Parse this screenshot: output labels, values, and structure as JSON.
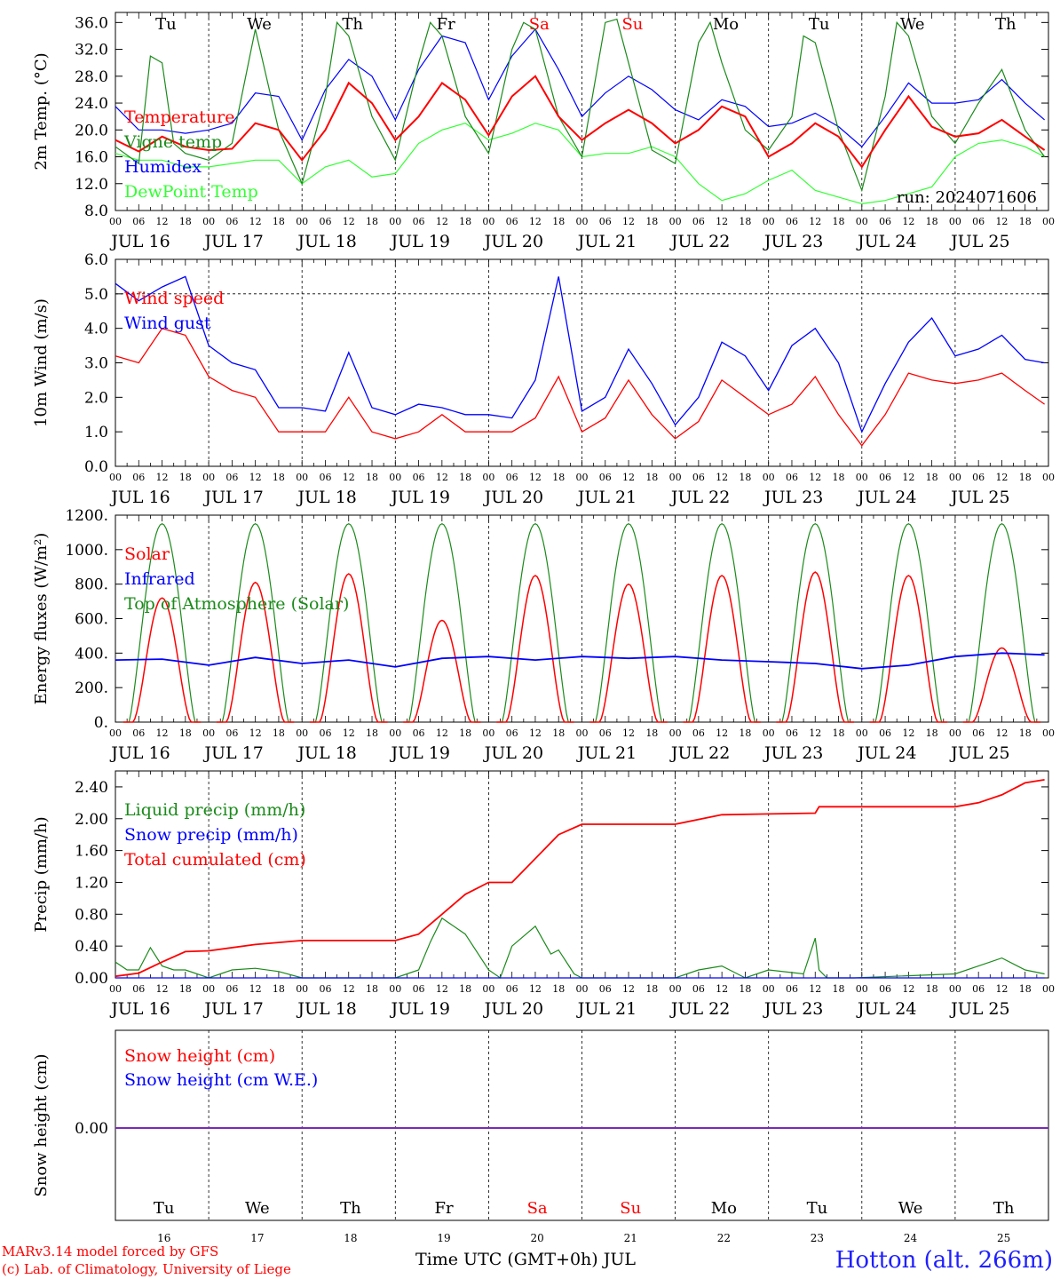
{
  "chart_data": [
    {
      "type": "line",
      "ylabel": "2m Temp. (°C)",
      "ylim": [
        8.0,
        37.5
      ],
      "yticks": [
        "8.0",
        "12.0",
        "16.0",
        "20.0",
        "24.0",
        "28.0",
        "32.0",
        "36.0"
      ],
      "xlabel_days": [
        "JUL 16",
        "JUL 17",
        "JUL 18",
        "JUL 19",
        "JUL 20",
        "JUL 21",
        "JUL 22",
        "JUL 23",
        "JUL 24",
        "JUL 25"
      ],
      "annotation": "run: 2024071606",
      "series": [
        {
          "name": "Temperature",
          "color": "#ff0000",
          "x_hours": [
            0,
            6,
            12,
            18,
            24,
            30,
            36,
            42,
            48,
            54,
            60,
            66,
            72,
            78,
            84,
            90,
            96,
            102,
            108,
            114,
            120,
            126,
            132,
            138,
            144,
            150,
            156,
            162,
            168,
            174,
            180,
            186,
            192,
            198,
            204,
            210,
            216,
            222,
            228,
            234,
            239
          ],
          "values": [
            18.5,
            16.8,
            19.0,
            17.5,
            17.0,
            17.2,
            21.0,
            20.0,
            15.5,
            20.0,
            27.0,
            24.0,
            18.5,
            22.0,
            27.0,
            24.5,
            19.2,
            25.0,
            28.0,
            22.0,
            18.5,
            21.0,
            23.0,
            21.0,
            18.0,
            20.0,
            23.5,
            22.0,
            16.0,
            18.0,
            21.0,
            19.0,
            14.5,
            20.0,
            25.0,
            20.5,
            19.0,
            19.5,
            21.5,
            19.0,
            17.0
          ]
        },
        {
          "name": "Vigne temp",
          "color": "#1a8a1a",
          "x_hours": [
            0,
            6,
            9,
            12,
            15,
            18,
            24,
            30,
            36,
            42,
            48,
            54,
            57,
            60,
            66,
            72,
            78,
            81,
            84,
            90,
            96,
            102,
            105,
            108,
            114,
            120,
            126,
            129,
            132,
            138,
            144,
            150,
            153,
            156,
            162,
            168,
            174,
            177,
            180,
            186,
            192,
            198,
            201,
            204,
            210,
            216,
            222,
            228,
            234,
            239
          ],
          "values": [
            17.5,
            15.0,
            31.0,
            30.0,
            18.0,
            16.5,
            15.5,
            18.0,
            35.0,
            20.0,
            12.0,
            25.0,
            36.0,
            34.0,
            22.0,
            15.5,
            30.0,
            36.0,
            34.0,
            22.0,
            16.5,
            32.0,
            36.0,
            35.0,
            22.0,
            16.0,
            36.0,
            36.5,
            30.0,
            17.0,
            15.0,
            33.0,
            36.0,
            30.0,
            20.0,
            17.0,
            22.0,
            34.0,
            33.0,
            20.0,
            11.0,
            25.0,
            36.0,
            34.0,
            22.0,
            18.0,
            24.0,
            29.0,
            20.0,
            16.0
          ]
        },
        {
          "name": "Humidex",
          "color": "#0000ff",
          "x_hours": [
            0,
            6,
            12,
            18,
            24,
            30,
            36,
            42,
            48,
            54,
            60,
            66,
            72,
            78,
            84,
            90,
            96,
            102,
            108,
            114,
            120,
            126,
            132,
            138,
            144,
            150,
            156,
            162,
            168,
            174,
            180,
            186,
            192,
            198,
            204,
            210,
            216,
            222,
            228,
            234,
            239
          ],
          "values": [
            23.5,
            20.0,
            20.0,
            19.5,
            20.0,
            21.0,
            25.5,
            25.0,
            18.5,
            26.0,
            30.5,
            28.0,
            21.5,
            29.0,
            34.0,
            33.0,
            24.5,
            31.0,
            35.0,
            29.0,
            22.0,
            25.5,
            28.0,
            26.0,
            23.0,
            21.5,
            24.5,
            23.5,
            20.5,
            21.0,
            22.5,
            20.5,
            17.5,
            22.0,
            27.0,
            24.0,
            24.0,
            24.5,
            27.5,
            24.0,
            21.5
          ]
        },
        {
          "name": "DewPoint Temp",
          "color": "#33ff33",
          "x_hours": [
            0,
            6,
            12,
            18,
            24,
            30,
            36,
            42,
            48,
            54,
            60,
            66,
            72,
            78,
            84,
            90,
            96,
            102,
            108,
            114,
            120,
            126,
            132,
            138,
            144,
            150,
            156,
            162,
            168,
            174,
            180,
            186,
            192,
            198,
            204,
            210,
            216,
            222,
            228,
            234,
            239
          ],
          "values": [
            16.5,
            15.5,
            15.5,
            14.5,
            14.5,
            15.0,
            15.5,
            15.5,
            12.0,
            14.5,
            15.5,
            13.0,
            13.5,
            18.0,
            20.0,
            21.0,
            18.5,
            19.5,
            21.0,
            20.0,
            16.0,
            16.5,
            16.5,
            17.5,
            16.0,
            12.0,
            9.5,
            10.5,
            12.5,
            14.0,
            11.0,
            10.0,
            9.0,
            9.5,
            10.5,
            11.5,
            16.0,
            18.0,
            18.5,
            17.5,
            16.0
          ]
        }
      ]
    },
    {
      "type": "line",
      "ylabel": "10m Wind (m/s)",
      "ylim": [
        0.0,
        6.0
      ],
      "yticks": [
        "0.0",
        "1.0",
        "2.0",
        "3.0",
        "4.0",
        "5.0",
        "6.0"
      ],
      "xlabel_days": [
        "JUL 16",
        "JUL 17",
        "JUL 18",
        "JUL 19",
        "JUL 20",
        "JUL 21",
        "JUL 22",
        "JUL 23",
        "JUL 24",
        "JUL 25"
      ],
      "series": [
        {
          "name": "Wind speed",
          "color": "#ff0000",
          "x_hours": [
            0,
            6,
            12,
            18,
            24,
            30,
            36,
            42,
            48,
            54,
            60,
            66,
            72,
            78,
            84,
            90,
            96,
            102,
            108,
            114,
            120,
            126,
            132,
            138,
            144,
            150,
            156,
            162,
            168,
            174,
            180,
            186,
            192,
            198,
            204,
            210,
            216,
            222,
            228,
            234,
            239
          ],
          "values": [
            3.2,
            3.0,
            4.0,
            3.8,
            2.6,
            2.2,
            2.0,
            1.0,
            1.0,
            1.0,
            2.0,
            1.0,
            0.8,
            1.0,
            1.5,
            1.0,
            1.0,
            1.0,
            1.4,
            2.6,
            1.0,
            1.4,
            2.5,
            1.5,
            0.8,
            1.3,
            2.5,
            2.0,
            1.5,
            1.8,
            2.6,
            1.5,
            0.6,
            1.5,
            2.7,
            2.5,
            2.4,
            2.5,
            2.7,
            2.2,
            1.8
          ]
        },
        {
          "name": "Wind gust",
          "color": "#0000ff",
          "x_hours": [
            0,
            6,
            12,
            18,
            24,
            30,
            36,
            42,
            48,
            54,
            60,
            66,
            72,
            78,
            84,
            90,
            96,
            102,
            108,
            114,
            120,
            126,
            132,
            138,
            144,
            150,
            156,
            162,
            168,
            174,
            180,
            186,
            192,
            198,
            204,
            210,
            216,
            222,
            228,
            234,
            239
          ],
          "values": [
            5.3,
            4.8,
            5.2,
            5.5,
            3.5,
            3.0,
            2.8,
            1.7,
            1.7,
            1.6,
            3.3,
            1.7,
            1.5,
            1.8,
            1.7,
            1.5,
            1.5,
            1.4,
            2.5,
            5.5,
            1.6,
            2.0,
            3.4,
            2.4,
            1.2,
            2.0,
            3.6,
            3.2,
            2.2,
            3.5,
            4.0,
            3.0,
            1.0,
            2.4,
            3.6,
            4.3,
            3.2,
            3.4,
            3.8,
            3.1,
            3.0
          ]
        }
      ]
    },
    {
      "type": "line",
      "ylabel": "Energy fluxes (W/m²)",
      "ylim": [
        0,
        1200
      ],
      "yticks": [
        "0.",
        "200.",
        "400.",
        "600.",
        "800.",
        "1000.",
        "1200."
      ],
      "xlabel_days": [
        "JUL 16",
        "JUL 17",
        "JUL 18",
        "JUL 19",
        "JUL 20",
        "JUL 21",
        "JUL 22",
        "JUL 23",
        "JUL 24",
        "JUL 25"
      ],
      "series": [
        {
          "name": "Solar",
          "color": "#ff0000",
          "daily_peaks": [
            720,
            810,
            860,
            590,
            850,
            800,
            850,
            870,
            850,
            430
          ]
        },
        {
          "name": "Infrared",
          "color": "#0000ff",
          "x_hours": [
            0,
            12,
            24,
            36,
            48,
            60,
            72,
            84,
            96,
            108,
            120,
            132,
            144,
            156,
            168,
            180,
            192,
            204,
            216,
            228,
            239
          ],
          "values": [
            360,
            365,
            330,
            375,
            340,
            360,
            320,
            370,
            380,
            360,
            380,
            370,
            380,
            360,
            350,
            340,
            310,
            330,
            380,
            400,
            390
          ]
        },
        {
          "name": "Top of Atmosphere (Solar)",
          "color": "#1a8a1a",
          "daily_peak": 1150
        }
      ]
    },
    {
      "type": "line",
      "ylabel": "Precip (mm/h)",
      "ylim": [
        0.0,
        2.6
      ],
      "yticks": [
        "0.00",
        "0.40",
        "0.80",
        "1.20",
        "1.60",
        "2.00",
        "2.40"
      ],
      "xlabel_days": [
        "JUL 16",
        "JUL 17",
        "JUL 18",
        "JUL 19",
        "JUL 20",
        "JUL 21",
        "JUL 22",
        "JUL 23",
        "JUL 24",
        "JUL 25"
      ],
      "series": [
        {
          "name": "Liquid precip (mm/h)",
          "color": "#1a8a1a",
          "x_hours": [
            0,
            3,
            6,
            9,
            12,
            15,
            18,
            24,
            30,
            36,
            42,
            48,
            60,
            72,
            78,
            81,
            84,
            90,
            96,
            99,
            102,
            108,
            112,
            114,
            118,
            120,
            144,
            150,
            156,
            160,
            162,
            168,
            177,
            180,
            181,
            183,
            190,
            216,
            222,
            228,
            234,
            239
          ],
          "values": [
            0.2,
            0.1,
            0.1,
            0.38,
            0.15,
            0.1,
            0.1,
            0.0,
            0.1,
            0.12,
            0.08,
            0.0,
            0.0,
            0.0,
            0.1,
            0.45,
            0.75,
            0.55,
            0.1,
            0.0,
            0.4,
            0.65,
            0.3,
            0.35,
            0.05,
            0.0,
            0.0,
            0.1,
            0.15,
            0.05,
            0.0,
            0.1,
            0.05,
            0.5,
            0.1,
            0.0,
            0.0,
            0.05,
            0.15,
            0.25,
            0.1,
            0.05
          ]
        },
        {
          "name": "Snow precip (mm/h)",
          "color": "#0000ff",
          "x_hours": [
            0,
            239
          ],
          "values": [
            0.0,
            0.0
          ]
        },
        {
          "name": "Total cumulated (cm)",
          "color": "#ff0000",
          "x_hours": [
            0,
            6,
            12,
            18,
            24,
            36,
            48,
            72,
            78,
            84,
            90,
            96,
            102,
            108,
            114,
            120,
            144,
            156,
            168,
            180,
            181,
            216,
            222,
            228,
            234,
            239
          ],
          "values": [
            0.02,
            0.06,
            0.2,
            0.33,
            0.34,
            0.42,
            0.47,
            0.47,
            0.55,
            0.8,
            1.05,
            1.2,
            1.2,
            1.5,
            1.8,
            1.93,
            1.93,
            2.05,
            2.06,
            2.07,
            2.15,
            2.15,
            2.2,
            2.3,
            2.45,
            2.49
          ]
        }
      ]
    },
    {
      "type": "line",
      "ylabel": "Snow height (cm)",
      "yticks": [
        "0.00"
      ],
      "series": [
        {
          "name": "Snow height (cm)",
          "color": "#ff0000",
          "x_hours": [
            0,
            239
          ],
          "values": [
            0.0,
            0.0
          ]
        },
        {
          "name": "Snow height (cm W.E.)",
          "color": "#0000ff",
          "x_hours": [
            0,
            239
          ],
          "values": [
            0.0,
            0.0
          ]
        }
      ],
      "weekdays": [
        "Tu",
        "We",
        "Th",
        "Fr",
        "Sa",
        "Su",
        "Mo",
        "Tu",
        "We",
        "Th"
      ],
      "day_numbers": [
        "16",
        "17",
        "18",
        "19",
        "20",
        "21",
        "22",
        "23",
        "24",
        "25"
      ],
      "xlabel": "Time UTC (GMT+0h) JUL"
    }
  ],
  "weekday_labels": [
    "Tu",
    "We",
    "Th",
    "Fr",
    "Sa",
    "Su",
    "Mo",
    "Tu",
    "We",
    "Th"
  ],
  "weekday_colors": [
    "#000000",
    "#000000",
    "#000000",
    "#000000",
    "#ff0000",
    "#ff0000",
    "#000000",
    "#000000",
    "#000000",
    "#000000"
  ],
  "hour_ticks": [
    "00",
    "06",
    "12",
    "18"
  ],
  "footer": {
    "line1": "MARv3.14 model forced by GFS",
    "line2": "(c) Lab. of Climatology, University of Liege",
    "station": "Hotton (alt. 266m)"
  }
}
